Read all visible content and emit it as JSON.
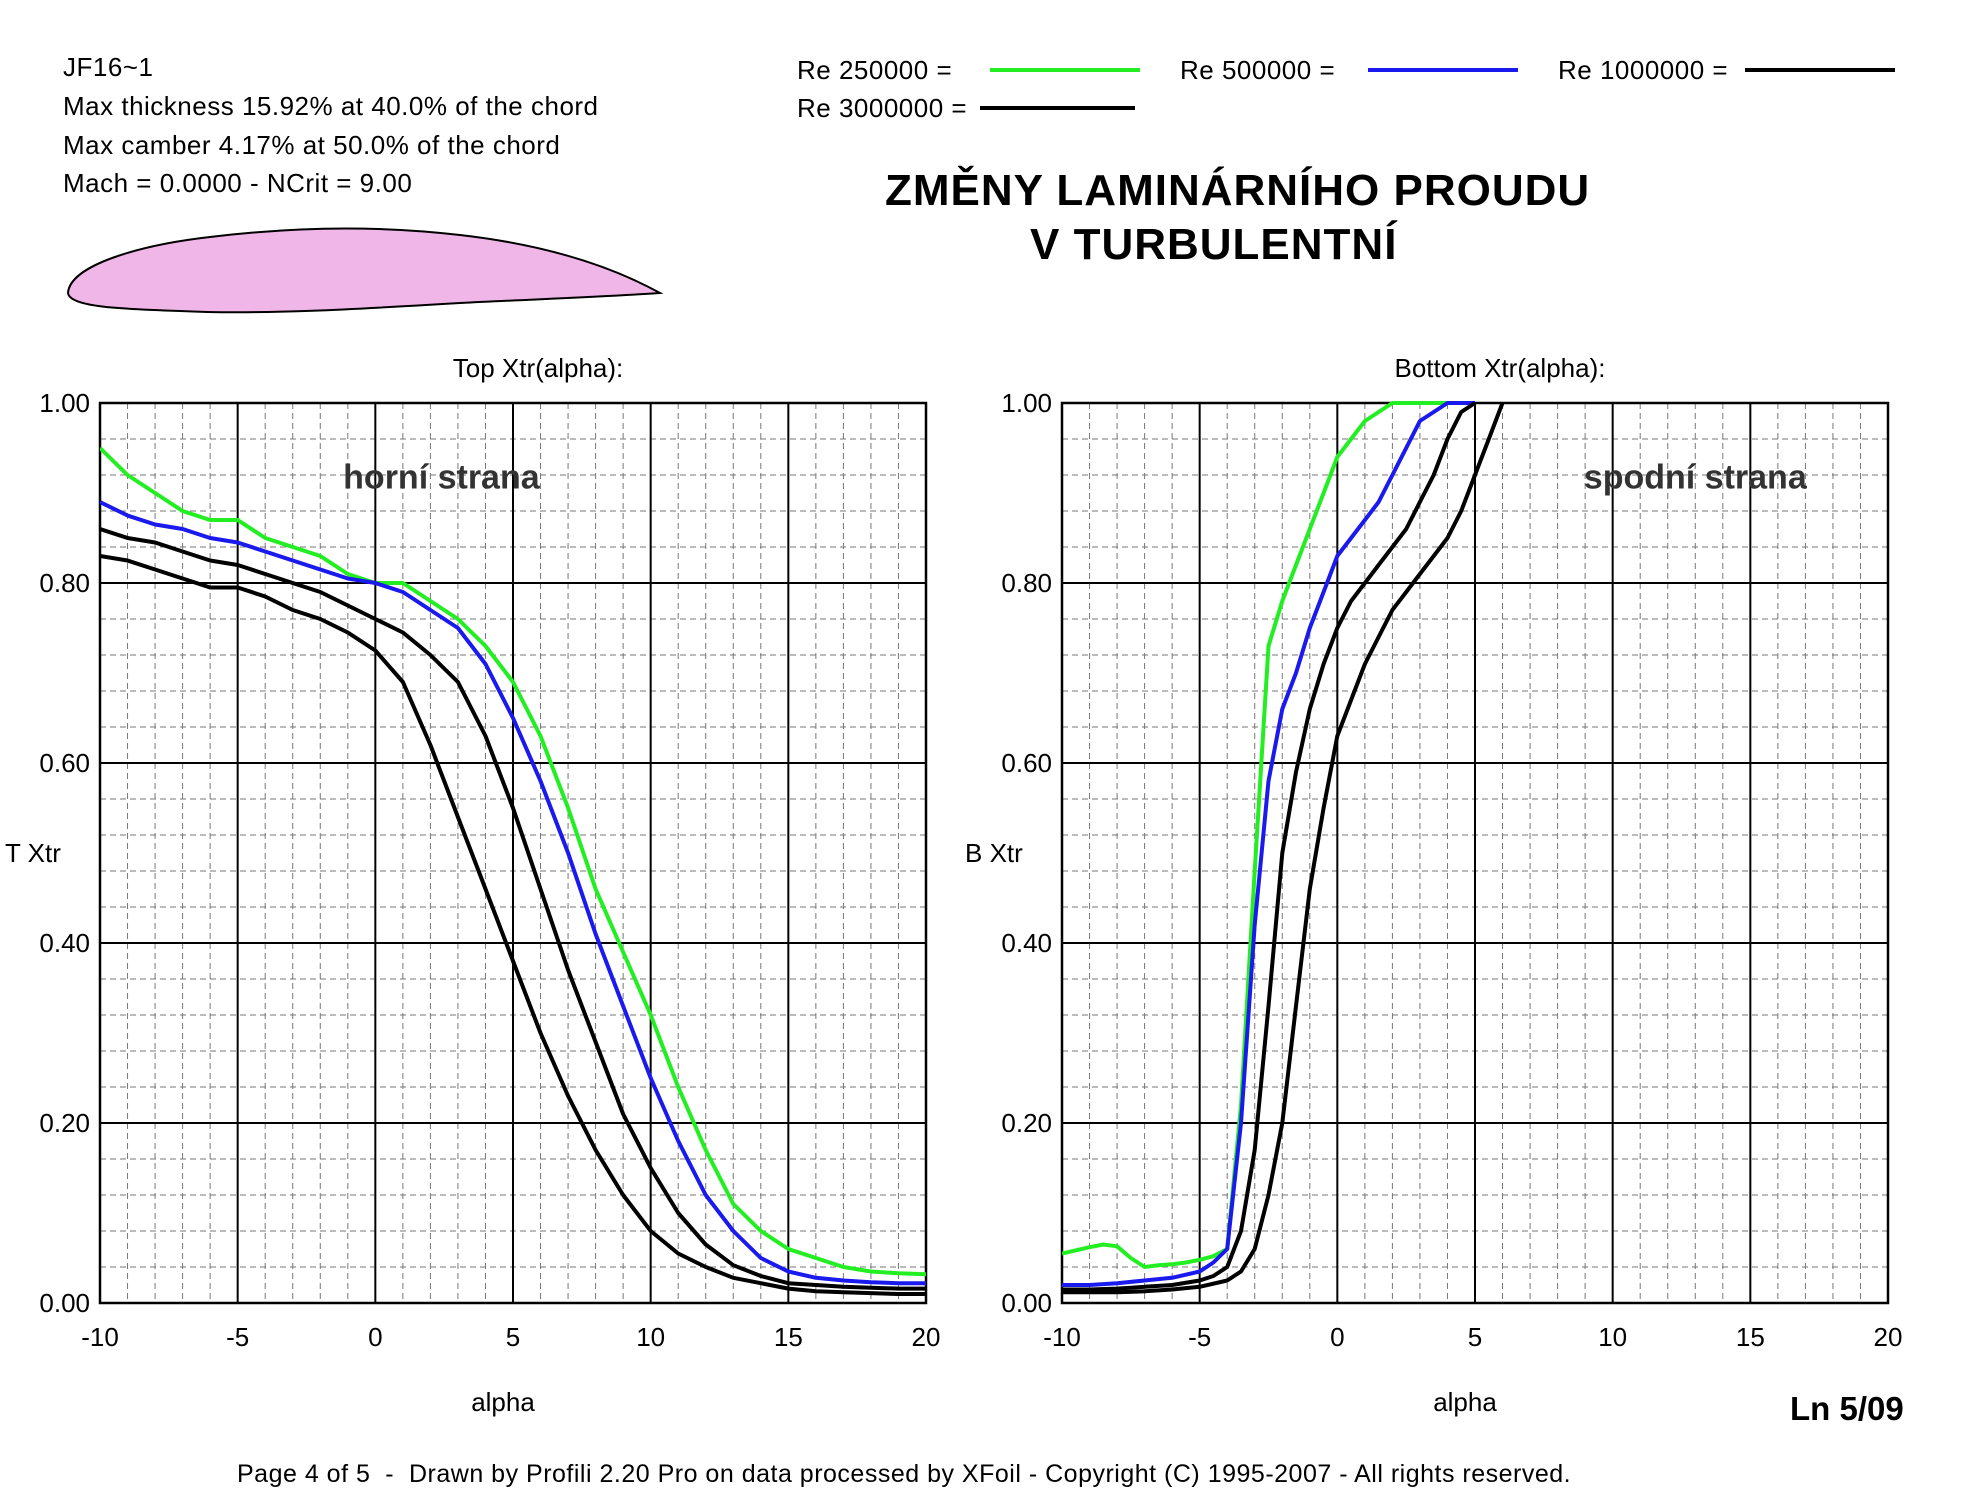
{
  "airfoil": {
    "name": "JF16~1",
    "thickness": "Max thickness 15.92% at 40.0% of the chord",
    "camber": "Max camber 4.17% at 50.0% of the chord",
    "conditions": "Mach = 0.0000 - NCrit = 9.00",
    "fill_color": "#f0b6e8"
  },
  "legend": [
    {
      "label": "Re 250000 =",
      "color": "#22ee22"
    },
    {
      "label": "Re 500000 =",
      "color": "#1a1aee"
    },
    {
      "label": "Re 1000000 =",
      "color": "#000000"
    },
    {
      "label": "Re 3000000 =",
      "color": "#000000"
    }
  ],
  "title": {
    "line1": "ZMĚNY LAMINÁRNÍHO PROUDU",
    "line2": "V TURBULENTNÍ"
  },
  "footer": "Page 4 of 5  -  Drawn by Profili 2.20 Pro on data processed by XFoil - Copyright (C) 1995-2007 - All rights reserved.",
  "page_label": "Ln 5/09",
  "chart_data": [
    {
      "type": "line",
      "title": "Top Xtr(alpha):",
      "annotation": "horní strana",
      "xlabel": "alpha",
      "ylabel": "T Xtr",
      "xlim": [
        -10,
        20
      ],
      "ylim": [
        0,
        1
      ],
      "xticks": [
        "-10",
        "-5",
        "0",
        "5",
        "10",
        "15",
        "20"
      ],
      "yticks": [
        "0.00",
        "0.20",
        "0.40",
        "0.60",
        "0.80",
        "1.00"
      ],
      "grid": true,
      "series": [
        {
          "name": "Re 250000",
          "color": "#22ee22",
          "x": [
            -10,
            -9,
            -8,
            -7,
            -6,
            -5,
            -4,
            -3,
            -2,
            -1,
            0,
            1,
            2,
            3,
            4,
            5,
            6,
            7,
            8,
            9,
            10,
            11,
            12,
            13,
            14,
            15,
            16,
            17,
            18,
            19,
            20
          ],
          "y": [
            0.95,
            0.92,
            0.9,
            0.88,
            0.87,
            0.87,
            0.85,
            0.84,
            0.83,
            0.81,
            0.8,
            0.8,
            0.78,
            0.76,
            0.73,
            0.69,
            0.63,
            0.55,
            0.46,
            0.39,
            0.32,
            0.24,
            0.17,
            0.11,
            0.08,
            0.06,
            0.05,
            0.04,
            0.035,
            0.033,
            0.032
          ]
        },
        {
          "name": "Re 500000",
          "color": "#1a1aee",
          "x": [
            -10,
            -9,
            -8,
            -7,
            -6,
            -5,
            -4,
            -3,
            -2,
            -1,
            0,
            1,
            2,
            3,
            4,
            5,
            6,
            7,
            8,
            9,
            10,
            11,
            12,
            13,
            14,
            15,
            16,
            17,
            18,
            19,
            20
          ],
          "y": [
            0.89,
            0.875,
            0.865,
            0.86,
            0.85,
            0.845,
            0.835,
            0.825,
            0.815,
            0.805,
            0.8,
            0.79,
            0.77,
            0.75,
            0.71,
            0.65,
            0.58,
            0.5,
            0.41,
            0.33,
            0.25,
            0.18,
            0.12,
            0.08,
            0.05,
            0.035,
            0.028,
            0.025,
            0.023,
            0.022,
            0.022
          ]
        },
        {
          "name": "Re 1000000",
          "color": "#000000",
          "x": [
            -10,
            -9,
            -8,
            -7,
            -6,
            -5,
            -4,
            -3,
            -2,
            -1,
            0,
            1,
            2,
            3,
            4,
            5,
            6,
            7,
            8,
            9,
            10,
            11,
            12,
            13,
            14,
            15,
            16,
            17,
            18,
            19,
            20
          ],
          "y": [
            0.86,
            0.85,
            0.845,
            0.835,
            0.825,
            0.82,
            0.81,
            0.8,
            0.79,
            0.775,
            0.76,
            0.745,
            0.72,
            0.69,
            0.63,
            0.55,
            0.46,
            0.37,
            0.29,
            0.21,
            0.15,
            0.1,
            0.065,
            0.042,
            0.03,
            0.022,
            0.02,
            0.018,
            0.017,
            0.016,
            0.016
          ]
        },
        {
          "name": "Re 3000000",
          "color": "#000000",
          "x": [
            -10,
            -9,
            -8,
            -7,
            -6,
            -5,
            -4,
            -3,
            -2,
            -1,
            0,
            1,
            2,
            3,
            4,
            5,
            6,
            7,
            8,
            9,
            10,
            11,
            12,
            13,
            14,
            15,
            16,
            17,
            18,
            19,
            20
          ],
          "y": [
            0.83,
            0.825,
            0.815,
            0.805,
            0.795,
            0.795,
            0.785,
            0.77,
            0.76,
            0.745,
            0.725,
            0.69,
            0.62,
            0.54,
            0.46,
            0.38,
            0.3,
            0.23,
            0.17,
            0.12,
            0.08,
            0.055,
            0.04,
            0.028,
            0.022,
            0.016,
            0.013,
            0.012,
            0.011,
            0.01,
            0.01
          ]
        }
      ]
    },
    {
      "type": "line",
      "title": "Bottom Xtr(alpha):",
      "annotation": "spodní strana",
      "xlabel": "alpha",
      "ylabel": "B Xtr",
      "xlim": [
        -10,
        20
      ],
      "ylim": [
        0,
        1
      ],
      "xticks": [
        "-10",
        "-5",
        "0",
        "5",
        "10",
        "15",
        "20"
      ],
      "yticks": [
        "0.00",
        "0.20",
        "0.40",
        "0.60",
        "0.80",
        "1.00"
      ],
      "grid": true,
      "series": [
        {
          "name": "Re 250000",
          "color": "#22ee22",
          "x": [
            -10,
            -9,
            -8.5,
            -8,
            -7.5,
            -7,
            -6.5,
            -6,
            -5.5,
            -5,
            -4.5,
            -4,
            -3.5,
            -3,
            -2.5,
            -2,
            -1.5,
            -1,
            -0.5,
            0,
            0.5,
            1,
            1.5,
            2,
            2.5,
            3,
            4,
            5
          ],
          "y": [
            0.055,
            0.062,
            0.065,
            0.063,
            0.05,
            0.04,
            0.042,
            0.043,
            0.045,
            0.048,
            0.052,
            0.06,
            0.22,
            0.48,
            0.73,
            0.78,
            0.82,
            0.86,
            0.9,
            0.94,
            0.96,
            0.98,
            0.99,
            1.0,
            1.0,
            1.0,
            1.0,
            1.0
          ]
        },
        {
          "name": "Re 500000",
          "color": "#1a1aee",
          "x": [
            -10,
            -9,
            -8,
            -7,
            -6,
            -5,
            -4.5,
            -4,
            -3.5,
            -3,
            -2.5,
            -2,
            -1.5,
            -1,
            -0.5,
            0,
            0.5,
            1,
            1.5,
            2,
            2.5,
            3,
            3.5,
            4,
            5
          ],
          "y": [
            0.02,
            0.02,
            0.022,
            0.025,
            0.028,
            0.035,
            0.045,
            0.06,
            0.2,
            0.42,
            0.58,
            0.66,
            0.7,
            0.75,
            0.79,
            0.83,
            0.85,
            0.87,
            0.89,
            0.92,
            0.95,
            0.98,
            0.99,
            1.0,
            1.0
          ]
        },
        {
          "name": "Re 1000000",
          "color": "#000000",
          "x": [
            -10,
            -9,
            -8,
            -7,
            -6,
            -5,
            -4.5,
            -4,
            -3.5,
            -3,
            -2.5,
            -2,
            -1.5,
            -1,
            -0.5,
            0,
            0.5,
            1,
            1.5,
            2,
            2.5,
            3,
            3.5,
            4,
            4.5,
            5
          ],
          "y": [
            0.015,
            0.015,
            0.016,
            0.018,
            0.02,
            0.025,
            0.03,
            0.04,
            0.08,
            0.17,
            0.33,
            0.5,
            0.59,
            0.66,
            0.71,
            0.75,
            0.78,
            0.8,
            0.82,
            0.84,
            0.86,
            0.89,
            0.92,
            0.96,
            0.99,
            1.0
          ]
        },
        {
          "name": "Re 3000000",
          "color": "#000000",
          "x": [
            -10,
            -9,
            -8,
            -7,
            -6,
            -5,
            -4,
            -3.5,
            -3,
            -2.5,
            -2,
            -1.5,
            -1,
            -0.5,
            0,
            0.5,
            1,
            1.5,
            2,
            2.5,
            3,
            3.5,
            4,
            4.5,
            5,
            5.5,
            6
          ],
          "y": [
            0.012,
            0.012,
            0.012,
            0.013,
            0.015,
            0.018,
            0.025,
            0.035,
            0.06,
            0.12,
            0.2,
            0.33,
            0.46,
            0.55,
            0.63,
            0.67,
            0.71,
            0.74,
            0.77,
            0.79,
            0.81,
            0.83,
            0.85,
            0.88,
            0.92,
            0.96,
            1.0
          ]
        }
      ]
    }
  ]
}
